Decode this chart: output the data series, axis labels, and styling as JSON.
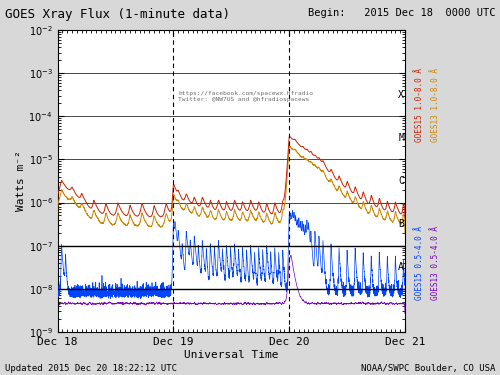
{
  "title": "GOES Xray Flux (1-minute data)",
  "title_right": "Begin:   2015 Dec 18  0000 UTC",
  "xlabel": "Universal Time",
  "ylabel": "Watts m⁻²",
  "footer_left": "Updated 2015 Dec 20 18:22:12 UTC",
  "footer_right": "NOAA/SWPC Boulder, CO USA",
  "watermark_line1": "https://facebook.com/spacewx.hfradio",
  "watermark_line2": "Twitter: @NW7US and @hfradiospacews",
  "xlim": [
    0,
    4320
  ],
  "xtick_positions": [
    0,
    1440,
    2880,
    4320
  ],
  "xtick_labels": [
    "Dec 18",
    "Dec 19",
    "Dec 20",
    "Dec 21"
  ],
  "dashed_vlines": [
    1440,
    2880
  ],
  "bg_color": "#d8d8d8",
  "plot_bg_color": "#ffffff",
  "line_color_goes15_long": "#cc2200",
  "line_color_goes13_long": "#cc8800",
  "line_color_goes15_short": "#0044ff",
  "line_color_goes13_short": "#7700bb"
}
